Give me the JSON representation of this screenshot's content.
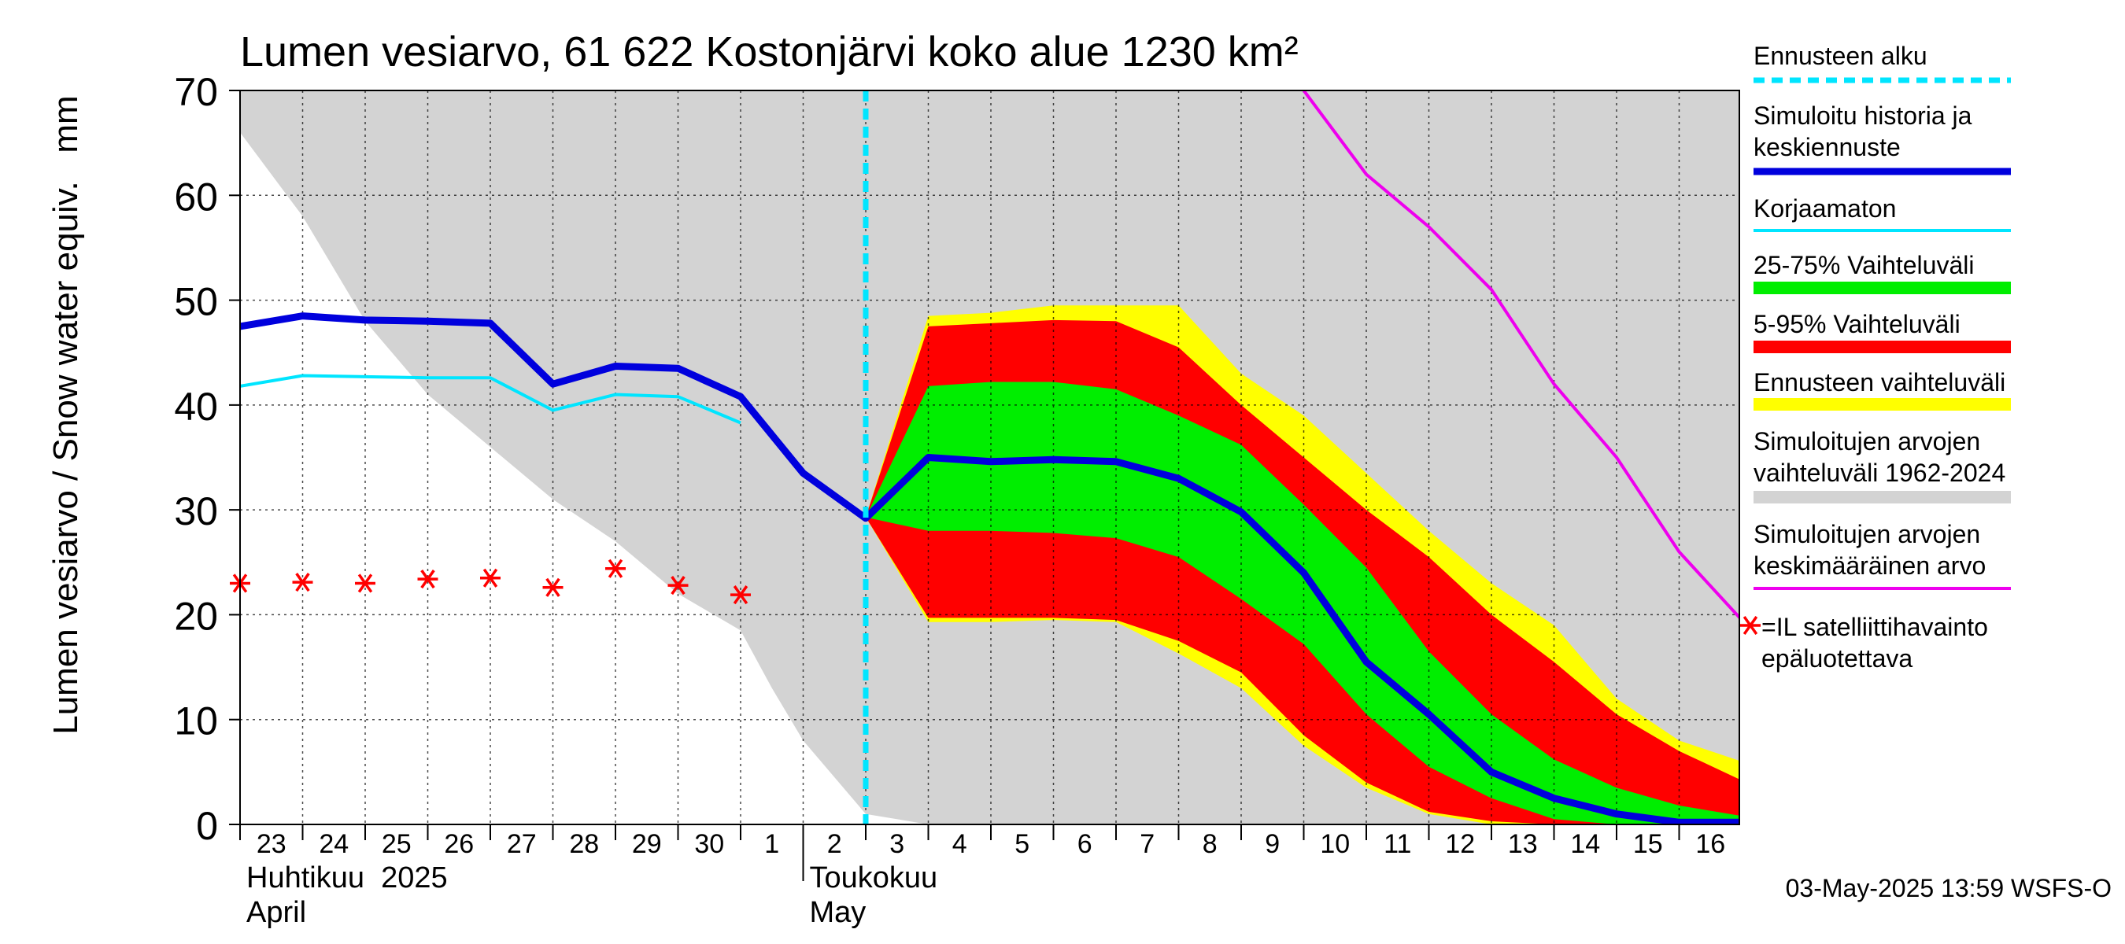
{
  "chart_data": {
    "type": "area",
    "title": "Lumen vesiarvo, 61 622 Kostonjärvi koko alue 1230 km²",
    "ylabel": "Lumen vesiarvo / Snow water equiv.",
    "yunit": "mm",
    "ylim": [
      0,
      70
    ],
    "yticks": [
      0,
      10,
      20,
      30,
      40,
      50,
      60,
      70
    ],
    "xlim": [
      0,
      24.3
    ],
    "x_tick_labels": [
      "23",
      "24",
      "25",
      "26",
      "27",
      "28",
      "29",
      "30",
      "1",
      "2",
      "3",
      "4",
      "5",
      "6",
      "7",
      "8",
      "9",
      "10",
      "11",
      "12",
      "13",
      "14",
      "15",
      "16"
    ],
    "month_labels": [
      {
        "fi": "Huhtikuu  2025",
        "en": "April",
        "x": 0
      },
      {
        "fi": "Toukokuu",
        "en": "May",
        "x": 9
      }
    ],
    "forecast_start_x": 10,
    "grid": true,
    "series": [
      {
        "name": "Simuloitujen arvojen vaihteluväli 1962-2024",
        "role": "historical_range",
        "color": "#d3d3d3",
        "x": [
          0,
          1,
          2,
          3,
          4,
          5,
          6,
          7,
          8,
          8.5,
          9,
          10,
          11,
          12,
          13,
          14,
          15,
          16,
          17,
          18,
          19,
          20,
          21,
          22,
          23,
          24,
          24.3
        ],
        "upper": [
          70,
          70,
          70,
          70,
          70,
          70,
          70,
          70,
          70,
          70,
          70,
          70,
          70,
          70,
          70,
          70,
          70,
          70,
          70,
          70,
          70,
          70,
          70,
          70,
          70,
          70,
          70
        ],
        "lower": [
          66,
          58,
          48,
          41,
          36,
          31,
          27,
          22,
          18.5,
          13,
          8,
          1,
          0,
          0,
          0,
          0,
          0,
          0,
          0,
          0,
          0,
          0,
          0,
          0,
          0,
          0,
          0
        ]
      },
      {
        "name": "Ennusteen vaihteluväli",
        "role": "forecast_range",
        "color": "#ffff00",
        "x": [
          10,
          11,
          12,
          13,
          14,
          15,
          16,
          17,
          18,
          19,
          20,
          21,
          22,
          23,
          24,
          24.3
        ],
        "upper": [
          29.3,
          48.5,
          48.8,
          49.5,
          49.5,
          49.5,
          43,
          39,
          33.5,
          28,
          23,
          19,
          12,
          8,
          6,
          5.5
        ],
        "lower": [
          29.3,
          19.3,
          19.3,
          19.5,
          19.3,
          16.3,
          13,
          7.5,
          3.5,
          1,
          0,
          0,
          0,
          0,
          0,
          0
        ]
      },
      {
        "name": "5-95% Vaihteluväli",
        "role": "p5_95",
        "color": "#ff0000",
        "x": [
          10,
          11,
          12,
          13,
          14,
          15,
          16,
          17,
          18,
          19,
          20,
          21,
          22,
          23,
          24,
          24.3
        ],
        "upper": [
          29.3,
          47.5,
          47.8,
          48.1,
          48,
          45.5,
          40,
          35,
          30,
          25.5,
          20,
          15.5,
          10.5,
          7,
          4.2,
          3.7
        ],
        "lower": [
          29.3,
          19.7,
          19.7,
          19.7,
          19.5,
          17.5,
          14.5,
          8.5,
          4,
          1.2,
          0.3,
          0,
          0,
          0,
          0,
          0
        ]
      },
      {
        "name": "25-75% Vaihteluväli",
        "role": "p25_75",
        "color": "#00ee00",
        "x": [
          10,
          11,
          12,
          13,
          14,
          15,
          16,
          17,
          18,
          19,
          20,
          21,
          22,
          23,
          24,
          24.3
        ],
        "upper": [
          29.3,
          41.8,
          42.2,
          42.2,
          41.5,
          39,
          36.2,
          30.5,
          24.5,
          16.5,
          10.5,
          6.2,
          3.5,
          1.8,
          0.8,
          0.5
        ],
        "lower": [
          29.3,
          28,
          28,
          27.8,
          27.3,
          25.5,
          21.5,
          17.2,
          10.5,
          5.5,
          2.5,
          0.5,
          0,
          0,
          0,
          0
        ]
      },
      {
        "name": "Simuloitu historia ja keskiennuste",
        "role": "median",
        "color": "#0000dd",
        "x": [
          0,
          1,
          2,
          3,
          4,
          5,
          6,
          7,
          8,
          9,
          10,
          11,
          12,
          13,
          14,
          15,
          16,
          17,
          18,
          19,
          20,
          21,
          22,
          23,
          24,
          24.3
        ],
        "y": [
          47.5,
          48.5,
          48.1,
          48,
          47.8,
          42,
          43.7,
          43.5,
          40.8,
          33.5,
          29.2,
          35,
          34.6,
          34.8,
          34.6,
          33,
          29.8,
          24,
          15.5,
          10.5,
          5,
          2.5,
          1,
          0.2,
          0.2,
          0.2
        ]
      },
      {
        "name": "Korjaamaton",
        "role": "uncorrected",
        "color": "#00e5ff",
        "x": [
          0,
          1,
          2,
          3,
          4,
          5,
          6,
          7,
          8
        ],
        "y": [
          41.8,
          42.8,
          42.7,
          42.6,
          42.6,
          39.5,
          41,
          40.8,
          38.3
        ]
      },
      {
        "name": "Simuloitujen arvojen keskimääräinen arvo",
        "role": "mean",
        "color": "#ee00ee",
        "x": [
          17,
          18,
          19,
          20,
          21,
          22,
          23,
          24,
          24.3
        ],
        "y": [
          70,
          62,
          57,
          51,
          42,
          35,
          26,
          19.5,
          19.3
        ]
      },
      {
        "name": "=IL satelliittihavainto epäluotettava",
        "role": "satellite",
        "color": "#ff0000",
        "x": [
          0,
          1,
          2,
          3,
          4,
          5,
          6,
          7,
          8
        ],
        "y": [
          23,
          23.1,
          23,
          23.4,
          23.5,
          22.6,
          24.4,
          22.8,
          21.9
        ]
      }
    ],
    "legend": {
      "position": "right",
      "entries": [
        {
          "label": "Ennusteen alku",
          "color": "#00e5ff",
          "style": "dashed"
        },
        {
          "label": "Simuloitu historia ja keskiennuste",
          "color": "#0000dd",
          "style": "thick"
        },
        {
          "label": "Korjaamaton",
          "color": "#00e5ff",
          "style": "line"
        },
        {
          "label": "25-75% Vaihteluväli",
          "color": "#00ee00",
          "style": "band"
        },
        {
          "label": "5-95% Vaihteluväli",
          "color": "#ff0000",
          "style": "band"
        },
        {
          "label": "Ennusteen vaihteluväli",
          "color": "#ffff00",
          "style": "band"
        },
        {
          "label": "Simuloitujen arvojen vaihteluväli 1962-2024",
          "color": "#d3d3d3",
          "style": "band"
        },
        {
          "label": "Simuloitujen arvojen keskimääräinen arvo",
          "color": "#ee00ee",
          "style": "line"
        },
        {
          "label": "=IL satelliittihavainto epäluotettava",
          "color": "#ff0000",
          "style": "star"
        }
      ]
    },
    "footer": "03-May-2025 13:59 WSFS-O"
  }
}
